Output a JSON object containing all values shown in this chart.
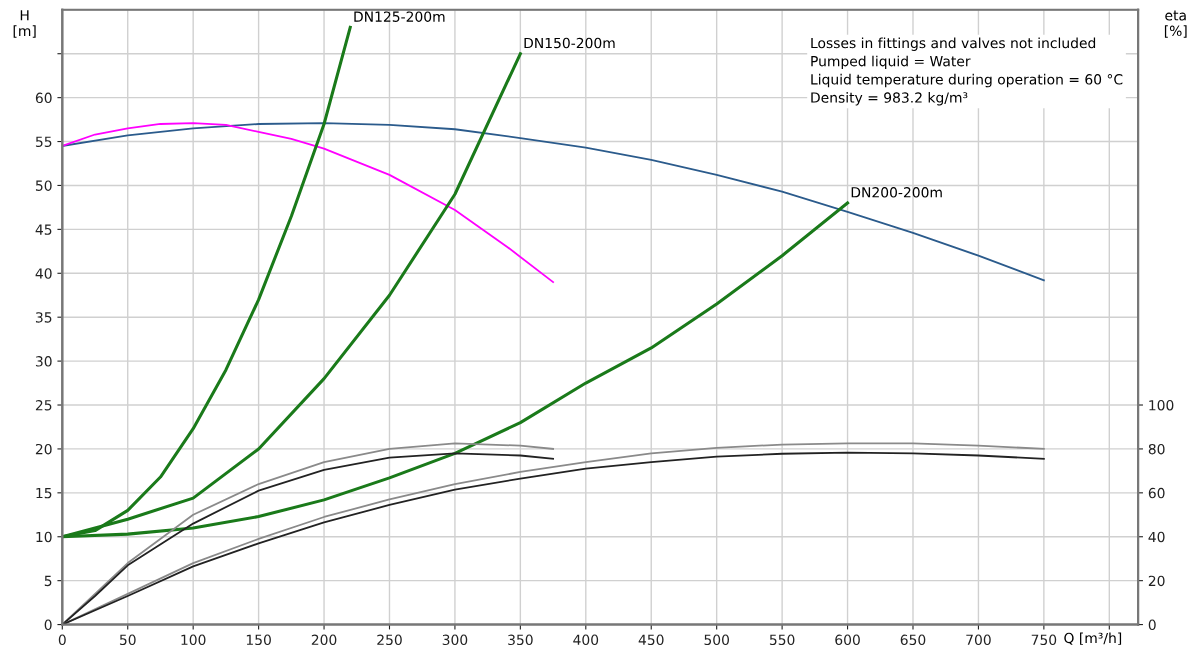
{
  "chart_data": {
    "type": "line",
    "xlabel": "Q [m³/h]",
    "ylabel": "H\n[m]",
    "y2label": "eta\n[%]",
    "xlim": [
      0,
      822
    ],
    "xticks": [
      0,
      50,
      100,
      150,
      200,
      250,
      300,
      350,
      400,
      450,
      500,
      550,
      600,
      650,
      700,
      750,
      {
        "value": 800,
        "label": null
      }
    ],
    "ylim": [
      0,
      70
    ],
    "yticks": [
      0,
      5,
      10,
      15,
      20,
      25,
      30,
      35,
      40,
      45,
      50,
      55,
      60,
      {
        "value": 65,
        "label": null
      }
    ],
    "y2lim": [
      0,
      280
    ],
    "y2ticks": [
      0,
      20,
      40,
      60,
      80,
      100
    ],
    "grid": true,
    "legend": false,
    "marker": "none",
    "line_style": "solid",
    "annotations": [
      "Losses in fittings and valves not included",
      "Pumped liquid = Water",
      "Liquid temperature during operation = 60 °C",
      "Density = 983.2 kg/m³"
    ],
    "series": [
      {
        "color": "#2b5b8c",
        "x": [
          0,
          50,
          100,
          150,
          200,
          250,
          300,
          350,
          400,
          450,
          500,
          550,
          600,
          650,
          700,
          750
        ],
        "values": [
          54.5,
          55.7,
          56.5,
          57.0,
          57.1,
          56.9,
          56.4,
          55.4,
          54.3,
          52.9,
          51.2,
          49.3,
          47.0,
          44.6,
          42.0,
          39.2
        ]
      },
      {
        "color": "#ff00ff",
        "x": [
          0,
          25,
          50,
          75,
          100,
          125,
          150,
          175,
          200,
          250,
          300,
          340,
          375
        ],
        "values": [
          54.5,
          55.8,
          56.5,
          57.0,
          57.1,
          56.9,
          56.1,
          55.3,
          54.2,
          51.2,
          47.2,
          43.0,
          39.0
        ]
      },
      {
        "name": "DN125-200m",
        "color": "#1a7a1a",
        "x": [
          0,
          25,
          50,
          75,
          100,
          125,
          150,
          175,
          200,
          220
        ],
        "values": [
          10,
          10.7,
          13,
          16.8,
          22.3,
          29,
          37,
          46.5,
          57,
          68
        ]
      },
      {
        "name": "DN150-200m",
        "color": "#1a7a1a",
        "x": [
          0,
          50,
          100,
          150,
          200,
          250,
          300,
          350
        ],
        "values": [
          10,
          12,
          14.4,
          20,
          28,
          37.5,
          49,
          65
        ]
      },
      {
        "name": "DN200-200m",
        "color": "#1a7a1a",
        "x": [
          0,
          50,
          100,
          150,
          200,
          250,
          300,
          350,
          400,
          450,
          500,
          550,
          600
        ],
        "values": [
          10,
          10.3,
          11,
          12.3,
          14.2,
          16.7,
          19.5,
          23,
          27.5,
          31.5,
          36.5,
          42,
          48
        ]
      },
      {
        "axis": "y2",
        "color": "#8a8a8a",
        "x": [
          0,
          25,
          50,
          100,
          150,
          200,
          250,
          300,
          350,
          375
        ],
        "values": [
          0,
          14,
          28,
          50,
          64,
          74,
          80,
          82.5,
          81.5,
          80
        ]
      },
      {
        "axis": "y2",
        "color": "#222222",
        "x": [
          0,
          25,
          50,
          100,
          150,
          200,
          250,
          300,
          350,
          375
        ],
        "values": [
          0,
          13,
          27,
          46,
          61,
          70.5,
          76,
          78,
          77,
          75.5
        ]
      },
      {
        "axis": "y2",
        "color": "#8a8a8a",
        "x": [
          0,
          50,
          100,
          150,
          200,
          250,
          300,
          350,
          400,
          450,
          500,
          550,
          600,
          650,
          700,
          750
        ],
        "values": [
          0,
          14,
          28,
          39,
          49,
          57,
          64,
          69.5,
          74,
          78,
          80.5,
          82,
          82.5,
          82.5,
          81.5,
          80
        ]
      },
      {
        "axis": "y2",
        "color": "#222222",
        "x": [
          0,
          50,
          100,
          150,
          200,
          250,
          300,
          350,
          400,
          450,
          500,
          550,
          600,
          650,
          700,
          750
        ],
        "values": [
          0,
          13,
          26.5,
          37,
          46.5,
          54.5,
          61.5,
          66.5,
          71,
          74,
          76.5,
          77.8,
          78.3,
          78,
          77,
          75.5
        ]
      }
    ]
  }
}
